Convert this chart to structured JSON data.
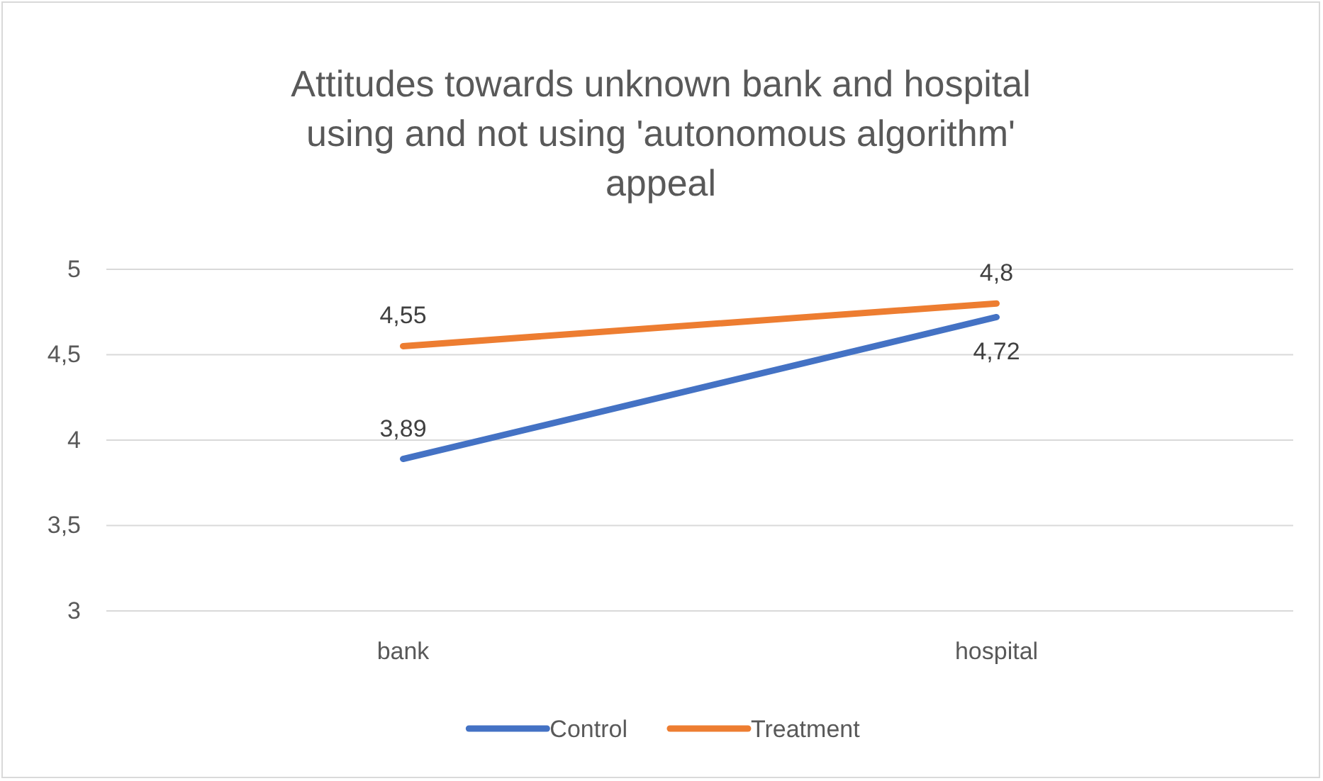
{
  "chart_data": {
    "type": "line",
    "title": "Attitudes towards unknown bank and hospital using and not using 'autonomous algorithm' appeal",
    "categories": [
      "bank",
      "hospital"
    ],
    "series": [
      {
        "name": "Control",
        "color": "#4472c4",
        "values": [
          3.89,
          4.72
        ],
        "value_labels": [
          "3,89",
          "4,72"
        ]
      },
      {
        "name": "Treatment",
        "color": "#ed7d31",
        "values": [
          4.55,
          4.8
        ],
        "value_labels": [
          "4,55",
          "4,8"
        ]
      }
    ],
    "ylim": [
      3,
      5
    ],
    "yticks": [
      3,
      {
        "value": 3.5,
        "label": "3,5"
      },
      4,
      {
        "value": 4.5,
        "label": "4,5"
      },
      5
    ],
    "grid": "y",
    "legend": "bottom",
    "marker": "none",
    "line_style": "solid"
  }
}
